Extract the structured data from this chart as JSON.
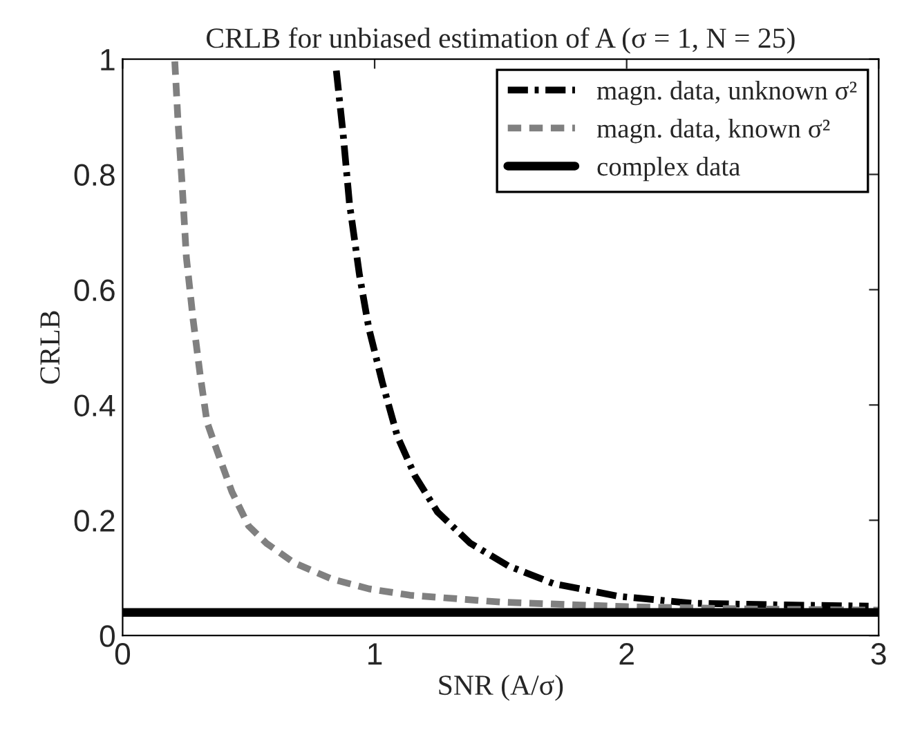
{
  "chart_data": {
    "type": "line",
    "title": "CRLB for unbiased estimation of A (σ = 1, N = 25)",
    "xlabel": "SNR (A/σ)",
    "ylabel": "CRLB",
    "xlim": [
      0,
      3
    ],
    "xticks": [
      0,
      1,
      2,
      3
    ],
    "ylim": [
      0,
      1
    ],
    "yticks": [
      0,
      0.2,
      0.4,
      0.6,
      0.8,
      1
    ],
    "grid": false,
    "legend": "top right",
    "series": [
      {
        "name": "magn. data, unknown σ²",
        "color": "#000000",
        "line_style": "dashdot",
        "x": [
          0.848,
          0.875,
          0.9,
          0.94,
          0.977,
          1.03,
          1.09,
          1.16,
          1.25,
          1.38,
          1.53,
          1.71,
          1.97,
          2.26,
          2.63,
          2.96
        ],
        "values": [
          0.98,
          0.87,
          0.75,
          0.625,
          0.533,
          0.44,
          0.346,
          0.277,
          0.214,
          0.16,
          0.121,
          0.09,
          0.068,
          0.056,
          0.053,
          0.051
        ]
      },
      {
        "name": "magn. data, known σ²",
        "color": "#808080",
        "line_style": "dashed",
        "x": [
          0.207,
          0.22,
          0.235,
          0.253,
          0.28,
          0.308,
          0.335,
          0.38,
          0.434,
          0.5,
          0.571,
          0.681,
          0.83,
          0.978,
          1.14,
          1.5,
          2,
          2.5,
          3
        ],
        "values": [
          0.996,
          0.89,
          0.79,
          0.656,
          0.547,
          0.451,
          0.37,
          0.314,
          0.249,
          0.19,
          0.16,
          0.126,
          0.098,
          0.081,
          0.07,
          0.058,
          0.05,
          0.046,
          0.044
        ]
      },
      {
        "name": "complex data",
        "color": "#000000",
        "line_style": "solid",
        "x": [
          0,
          3
        ],
        "values": [
          0.04,
          0.04
        ]
      }
    ]
  }
}
